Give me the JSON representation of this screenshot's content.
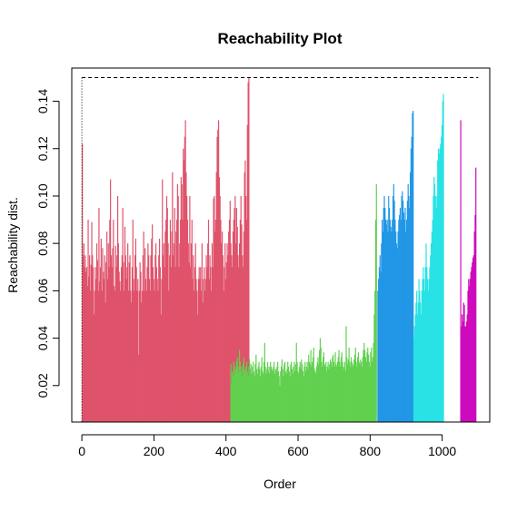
{
  "chart_data": {
    "type": "bar",
    "title": "Reachability Plot",
    "xlabel": "Order",
    "ylabel": "Reachability dist.",
    "xlim": [
      -28,
      1132
    ],
    "ylim": [
      0.0046,
      0.154
    ],
    "xticks": [
      0,
      200,
      400,
      600,
      800,
      1000
    ],
    "yticks": [
      0.02,
      0.04,
      0.06,
      0.08,
      0.1,
      0.12,
      0.14
    ],
    "ytick_labels": [
      "0.02",
      "0.04",
      "0.06",
      "0.08",
      "0.10",
      "0.12",
      "0.14"
    ],
    "threshold": {
      "value": 0.15,
      "x_start": 0,
      "x_end": 1100,
      "style": "dashed"
    },
    "start_marker": {
      "x": 0,
      "style": "dotted"
    },
    "bar_step": 2,
    "grid": false,
    "legend": "none",
    "clusters": [
      {
        "color": "#DF536B",
        "x_start": 0,
        "values": [
          0.122,
          0.075,
          0.08,
          0.07,
          0.075,
          0.068,
          0.07,
          0.062,
          0.09,
          0.066,
          0.075,
          0.06,
          0.071,
          0.089,
          0.075,
          0.07,
          0.05,
          0.06,
          0.07,
          0.065,
          0.08,
          0.073,
          0.06,
          0.095,
          0.064,
          0.07,
          0.082,
          0.06,
          0.078,
          0.068,
          0.065,
          0.075,
          0.055,
          0.072,
          0.085,
          0.065,
          0.08,
          0.07,
          0.09,
          0.107,
          0.075,
          0.07,
          0.078,
          0.09,
          0.062,
          0.06,
          0.079,
          0.07,
          0.075,
          0.1,
          0.08,
          0.068,
          0.064,
          0.06,
          0.07,
          0.075,
          0.095,
          0.072,
          0.06,
          0.087,
          0.075,
          0.065,
          0.07,
          0.08,
          0.06,
          0.072,
          0.075,
          0.06,
          0.055,
          0.07,
          0.09,
          0.065,
          0.06,
          0.075,
          0.082,
          0.07,
          0.06,
          0.065,
          0.033,
          0.06,
          0.072,
          0.068,
          0.055,
          0.06,
          0.075,
          0.085,
          0.06,
          0.078,
          0.065,
          0.06,
          0.07,
          0.08,
          0.075,
          0.065,
          0.06,
          0.075,
          0.082,
          0.088,
          0.07,
          0.065,
          0.06,
          0.075,
          0.08,
          0.07,
          0.065,
          0.06,
          0.075,
          0.082,
          0.07,
          0.05,
          0.065,
          0.107,
          0.075,
          0.08,
          0.07,
          0.085,
          0.09,
          0.1,
          0.095,
          0.08,
          0.06,
          0.075,
          0.09,
          0.07,
          0.085,
          0.11,
          0.075,
          0.08,
          0.095,
          0.07,
          0.085,
          0.09,
          0.105,
          0.1,
          0.07,
          0.08,
          0.09,
          0.108,
          0.105,
          0.09,
          0.12,
          0.115,
          0.125,
          0.132,
          0.11,
          0.1,
          0.09,
          0.08,
          0.072,
          0.1,
          0.07,
          0.08,
          0.09,
          0.065,
          0.075,
          0.06,
          0.07,
          0.08,
          0.065,
          0.06,
          0.05,
          0.065,
          0.07,
          0.065,
          0.07,
          0.06,
          0.08,
          0.055,
          0.065,
          0.07,
          0.06,
          0.065,
          0.075,
          0.07,
          0.08,
          0.09,
          0.065,
          0.075,
          0.07,
          0.06,
          0.08,
          0.07,
          0.099,
          0.1,
          0.085,
          0.09,
          0.11,
          0.125,
          0.128,
          0.132,
          0.108,
          0.1,
          0.09,
          0.08,
          0.085,
          0.075,
          0.06,
          0.07,
          0.08,
          0.065,
          0.072,
          0.08,
          0.075,
          0.085,
          0.09,
          0.098,
          0.08,
          0.075,
          0.07,
          0.085,
          0.09,
          0.095,
          0.1,
          0.08,
          0.095,
          0.087,
          0.075,
          0.07,
          0.08,
          0.09,
          0.1,
          0.088,
          0.075,
          0.07,
          0.085,
          0.11,
          0.115,
          0.1,
          0.09,
          0.13,
          0.148,
          0.15
        ]
      },
      {
        "color": "#61D04F",
        "x_start": 412,
        "values": [
          0.029,
          0.021,
          0.026,
          0.024,
          0.03,
          0.028,
          0.025,
          0.027,
          0.03,
          0.032,
          0.028,
          0.025,
          0.035,
          0.03,
          0.026,
          0.028,
          0.024,
          0.029,
          0.032,
          0.027,
          0.025,
          0.028,
          0.03,
          0.026,
          0.024,
          0.028,
          0.031,
          0.027,
          0.029,
          0.025,
          0.028,
          0.03,
          0.026,
          0.024,
          0.029,
          0.033,
          0.027,
          0.025,
          0.028,
          0.03,
          0.027,
          0.024,
          0.028,
          0.032,
          0.026,
          0.025,
          0.03,
          0.038,
          0.028,
          0.025,
          0.027,
          0.03,
          0.026,
          0.028,
          0.025,
          0.03,
          0.028,
          0.027,
          0.026,
          0.028,
          0.03,
          0.025,
          0.027,
          0.026,
          0.028,
          0.03,
          0.026,
          0.024,
          0.02,
          0.026,
          0.028,
          0.031,
          0.027,
          0.024,
          0.029,
          0.03,
          0.026,
          0.025,
          0.027,
          0.03,
          0.028,
          0.026,
          0.024,
          0.029,
          0.03,
          0.027,
          0.025,
          0.028,
          0.03,
          0.026,
          0.029,
          0.038,
          0.03,
          0.026,
          0.025,
          0.028,
          0.03,
          0.027,
          0.031,
          0.029,
          0.026,
          0.024,
          0.028,
          0.03,
          0.026,
          0.028,
          0.03,
          0.027,
          0.033,
          0.03,
          0.029,
          0.035,
          0.028,
          0.03,
          0.032,
          0.036,
          0.027,
          0.026,
          0.025,
          0.028,
          0.03,
          0.032,
          0.029,
          0.035,
          0.04,
          0.036,
          0.03,
          0.028,
          0.032,
          0.034,
          0.029,
          0.028,
          0.03,
          0.026,
          0.028,
          0.03,
          0.027,
          0.029,
          0.031,
          0.03,
          0.028,
          0.032,
          0.033,
          0.03,
          0.028,
          0.034,
          0.029,
          0.028,
          0.03,
          0.032,
          0.035,
          0.03,
          0.028,
          0.032,
          0.034,
          0.03,
          0.028,
          0.027,
          0.03,
          0.026,
          0.045,
          0.032,
          0.029,
          0.031,
          0.036,
          0.03,
          0.028,
          0.032,
          0.03,
          0.029,
          0.028,
          0.031,
          0.033,
          0.036,
          0.03,
          0.028,
          0.032,
          0.034,
          0.03,
          0.029,
          0.031,
          0.03,
          0.028,
          0.032,
          0.035,
          0.038,
          0.035,
          0.032,
          0.03,
          0.034,
          0.036,
          0.033,
          0.03,
          0.028,
          0.034,
          0.036,
          0.03,
          0.032,
          0.038,
          0.05,
          0.06,
          0.09,
          0.105
        ]
      },
      {
        "color": "#2297E6",
        "x_start": 820,
        "values": [
          0.06,
          0.065,
          0.07,
          0.075,
          0.068,
          0.08,
          0.09,
          0.085,
          0.095,
          0.1,
          0.095,
          0.09,
          0.088,
          0.09,
          0.085,
          0.1,
          0.095,
          0.09,
          0.087,
          0.085,
          0.09,
          0.1,
          0.105,
          0.098,
          0.09,
          0.085,
          0.08,
          0.078,
          0.085,
          0.09,
          0.092,
          0.095,
          0.09,
          0.1,
          0.102,
          0.098,
          0.093,
          0.09,
          0.095,
          0.085,
          0.09,
          0.098,
          0.105,
          0.1,
          0.095,
          0.11,
          0.12,
          0.125,
          0.135,
          0.136
        ]
      },
      {
        "color": "#28E2E5",
        "x_start": 920,
        "values": [
          0.04,
          0.045,
          0.05,
          0.055,
          0.06,
          0.05,
          0.055,
          0.065,
          0.06,
          0.055,
          0.05,
          0.06,
          0.065,
          0.07,
          0.065,
          0.06,
          0.07,
          0.08,
          0.07,
          0.065,
          0.06,
          0.065,
          0.07,
          0.075,
          0.08,
          0.085,
          0.09,
          0.1,
          0.108,
          0.105,
          0.1,
          0.095,
          0.1,
          0.115,
          0.12,
          0.118,
          0.12,
          0.122,
          0.125,
          0.13,
          0.14,
          0.143
        ]
      },
      {
        "color": "#CD0BBC",
        "x_start": 1050,
        "values": [
          0.132,
          0.045,
          0.05,
          0.047,
          0.055,
          0.054,
          0.045,
          0.045,
          0.047,
          0.05,
          0.06,
          0.065,
          0.062,
          0.065,
          0.068,
          0.07,
          0.072,
          0.074,
          0.075,
          0.085,
          0.092,
          0.112
        ]
      }
    ]
  }
}
